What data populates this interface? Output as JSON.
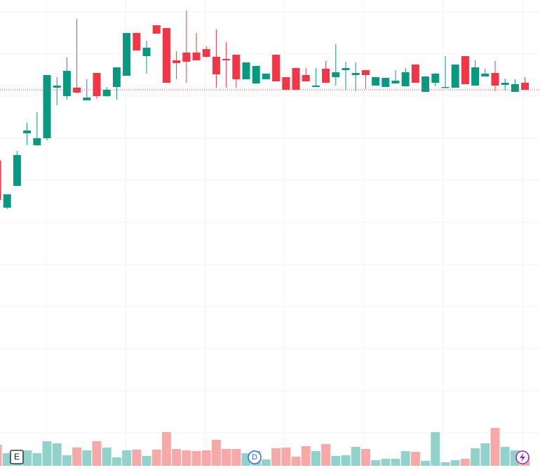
{
  "chart_data": {
    "type": "candlestick",
    "ylim": [
      0,
      670
    ],
    "y2lim": [
      0,
      664
    ],
    "grid": true,
    "up_color": "#089981",
    "down_color": "#f23645",
    "volume_up_color": "#92d2cc",
    "volume_down_color": "#f7a9a7",
    "open": [
      441,
      374,
      405,
      480,
      463,
      473,
      545,
      533,
      545,
      527,
      566,
      533,
      546,
      562,
      623,
      590,
      634,
      630,
      584,
      595,
      595,
      600,
      589,
      586,
      592,
      557,
      551,
      557,
      592,
      560,
      573,
      563,
      546,
      572,
      560,
      570,
      563,
      570,
      548,
      546,
      551,
      547,
      578,
      539,
      552,
      545,
      545,
      590,
      548,
      561,
      566,
      549,
      539,
      552
    ],
    "high": [
      441,
      393,
      455,
      495,
      510,
      563,
      560,
      588,
      643,
      557,
      566,
      546,
      574,
      623,
      623,
      612,
      634,
      630,
      597,
      655,
      623,
      604,
      628,
      610,
      592,
      581,
      576,
      565,
      592,
      560,
      573,
      573,
      573,
      583,
      607,
      582,
      581,
      570,
      560,
      559,
      570,
      573,
      578,
      561,
      566,
      590,
      578,
      590,
      584,
      572,
      583,
      558,
      557,
      560
    ],
    "low": [
      380,
      372,
      405,
      463,
      462,
      470,
      520,
      528,
      537,
      527,
      529,
      532,
      528,
      562,
      598,
      565,
      622,
      552,
      557,
      552,
      584,
      588,
      545,
      545,
      545,
      557,
      551,
      557,
      554,
      542,
      542,
      554,
      546,
      552,
      548,
      542,
      540,
      543,
      548,
      546,
      551,
      547,
      552,
      539,
      547,
      545,
      545,
      550,
      548,
      561,
      540,
      541,
      539,
      542
    ],
    "close": [
      385,
      393,
      449,
      484,
      473,
      563,
      548,
      569,
      538,
      531,
      533,
      542,
      574,
      623,
      598,
      602,
      622,
      552,
      580,
      582,
      584,
      589,
      564,
      584,
      557,
      581,
      576,
      565,
      554,
      542,
      542,
      554,
      548,
      552,
      567,
      573,
      566,
      563,
      560,
      559,
      555,
      567,
      552,
      561,
      565,
      546,
      578,
      550,
      574,
      565,
      548,
      552,
      550,
      542
    ],
    "volume": [
      30,
      18,
      21,
      22,
      18,
      35,
      32,
      15,
      26,
      22,
      35,
      26,
      12,
      22,
      23,
      14,
      23,
      48,
      24,
      22,
      21,
      22,
      37,
      24,
      24,
      18,
      21,
      9,
      25,
      26,
      13,
      28,
      21,
      31,
      14,
      15,
      27,
      24,
      8,
      10,
      10,
      21,
      20,
      7,
      48,
      5,
      8,
      10,
      25,
      32,
      54,
      27,
      22,
      13
    ],
    "markers": [
      "E",
      "D"
    ]
  }
}
